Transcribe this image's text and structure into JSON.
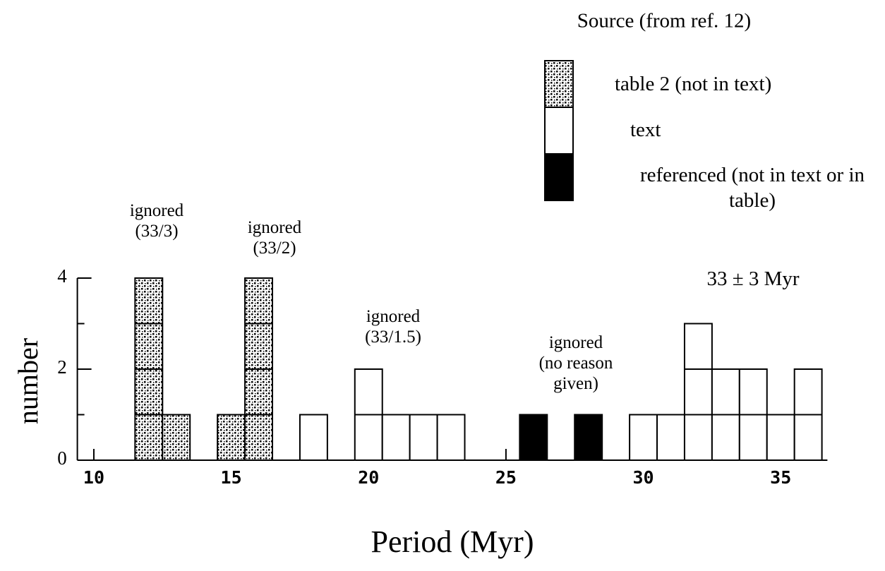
{
  "chart_data": {
    "type": "histogram",
    "legend_title": "Source (from ref. 12)",
    "xlabel": "Period (Myr)",
    "ylabel": "number",
    "bins": [
      11.5,
      12.5,
      13.5,
      14.5,
      15.5,
      16.5,
      17.5,
      18.5,
      19.5,
      20.5,
      21.5,
      22.5,
      23.5,
      24.5,
      25.5,
      26.5,
      27.5,
      28.5,
      29.5,
      30.5,
      31.5,
      32.5,
      33.5,
      34.5,
      35.5,
      36.5
    ],
    "series": [
      {
        "name": "table 2 (not in text)",
        "color": "#ffffff",
        "pattern": "dots",
        "values": [
          4,
          1,
          0,
          1,
          4,
          0,
          0,
          0,
          0,
          0,
          0,
          0,
          0,
          0,
          0,
          0,
          0,
          0,
          0,
          0,
          0,
          0,
          0,
          0,
          0
        ]
      },
      {
        "name": "text",
        "color": "#ffffff",
        "values": [
          0,
          0,
          0,
          0,
          0,
          0,
          1,
          0,
          2,
          1,
          1,
          1,
          0,
          0,
          0,
          0,
          0,
          0,
          1,
          1,
          3,
          2,
          2,
          1,
          2
        ]
      },
      {
        "name": "referenced (not in text or in table)",
        "color": "#000000",
        "values": [
          0,
          0,
          0,
          0,
          0,
          0,
          0,
          0,
          0,
          0,
          0,
          0,
          0,
          0,
          1,
          0,
          1,
          0,
          0,
          0,
          0,
          0,
          0,
          0,
          0
        ]
      }
    ],
    "xlim": [
      9.4,
      36.7
    ],
    "xticks": [
      10,
      15,
      20,
      25,
      30,
      35
    ],
    "ylim": [
      0,
      4
    ],
    "yticks": [
      0,
      2,
      4
    ],
    "yminor_ticks": [
      1,
      3
    ],
    "annotations": [
      {
        "lines": [
          "ignored",
          "(33/3)"
        ]
      },
      {
        "lines": [
          "ignored",
          "(33/2)"
        ]
      },
      {
        "lines": [
          "ignored",
          "(33/1.5)"
        ]
      },
      {
        "lines": [
          "ignored",
          "(no reason",
          "given)"
        ]
      },
      {
        "lines": [
          "33 ± 3 Myr"
        ]
      }
    ]
  }
}
